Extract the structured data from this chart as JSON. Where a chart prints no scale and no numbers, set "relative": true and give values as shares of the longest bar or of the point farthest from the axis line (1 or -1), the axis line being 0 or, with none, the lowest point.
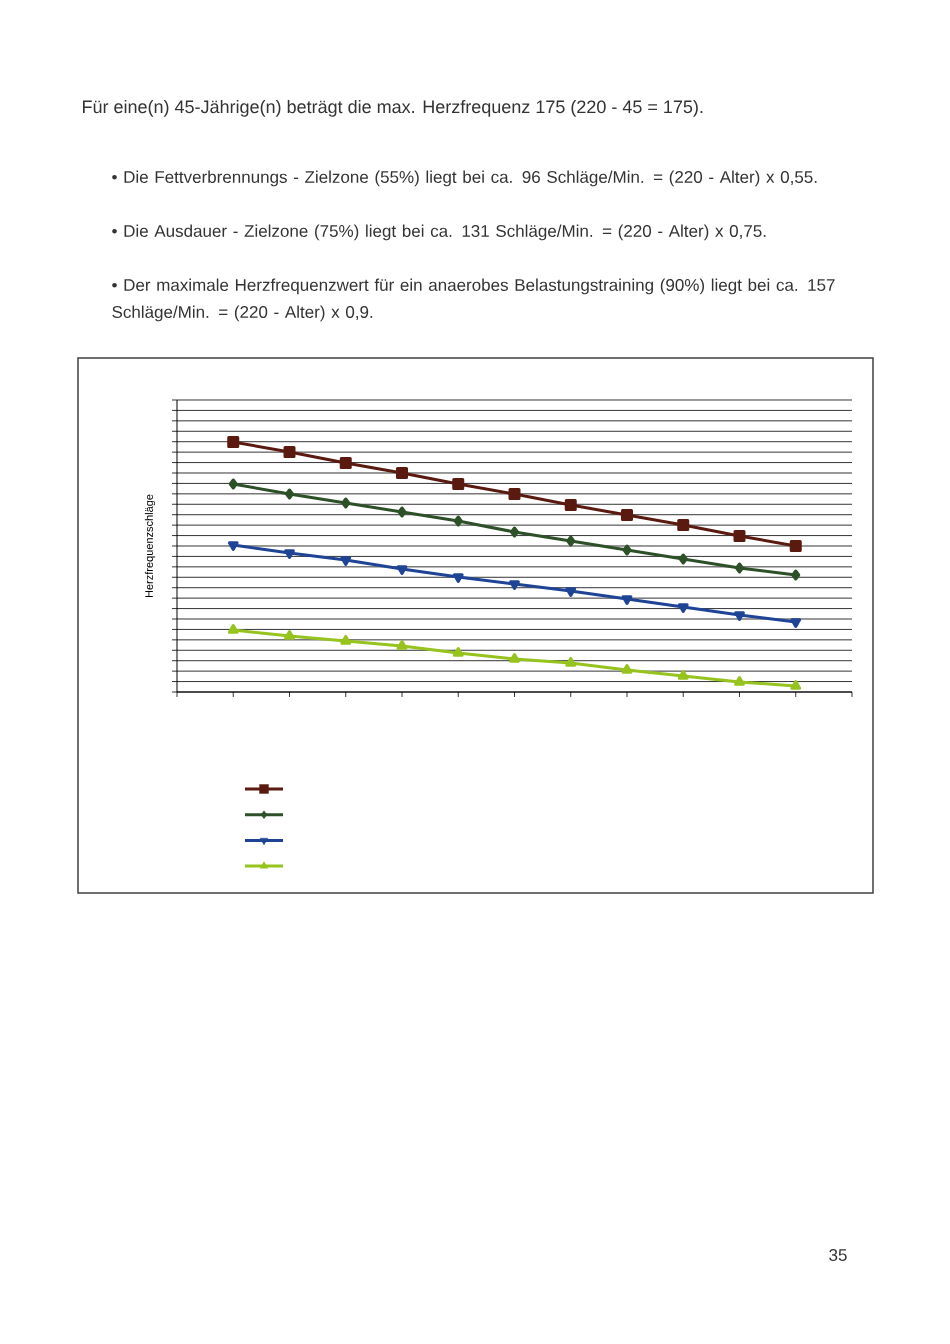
{
  "chart_data": {
    "type": "line",
    "relative": true,
    "title": "Für eine(n) 45-Jährige(n) beträgt die max. Herzfrequenz 175 (220 - 45 = 175).",
    "ylabel": "Herzfrequenzschläge",
    "annotations": [
      "• Die Fettverbrennungs - Zielzone (55%) liegt bei ca. 96 Schläge/Min. = (220 - Alter) x 0,55.",
      "• Die Ausdauer - Zielzone (75%) liegt bei ca. 131 Schläge/Min. = (220 - Alter) x 0,75.",
      "• Der maximale Herzfrequenzwert für ein anaerobes Belastungstraining (90%) liegt bei ca. 157 Schläge/Min. = (220 - Alter) x 0,9.",
      "35"
    ],
    "categories": [
      null,
      null,
      null,
      null,
      null,
      null,
      null,
      null,
      null,
      null,
      null
    ],
    "series": [
      {
        "color": "#5a1a10",
        "marker": "square",
        "values": [
          1,
          0.96,
          0.916,
          0.876,
          0.832,
          0.792,
          0.748,
          0.708,
          0.668,
          0.624,
          0.584
        ]
      },
      {
        "color": "#2d5028",
        "marker": "diamond",
        "values": [
          0.832,
          0.792,
          0.756,
          0.72,
          0.684,
          0.64,
          0.604,
          0.568,
          0.532,
          0.496,
          0.468
        ]
      },
      {
        "color": "#1f4496",
        "marker": "triangle",
        "values": [
          0.588,
          0.556,
          0.528,
          0.492,
          0.46,
          0.432,
          0.404,
          0.372,
          0.34,
          0.308,
          0.28
        ]
      },
      {
        "color": "#96c31e",
        "marker": "triangle",
        "values": [
          0.248,
          0.224,
          0.204,
          0.184,
          0.156,
          0.132,
          0.116,
          0.088,
          0.064,
          0.04,
          0.024
        ]
      }
    ],
    "grid": "y",
    "line_style": "solid"
  }
}
